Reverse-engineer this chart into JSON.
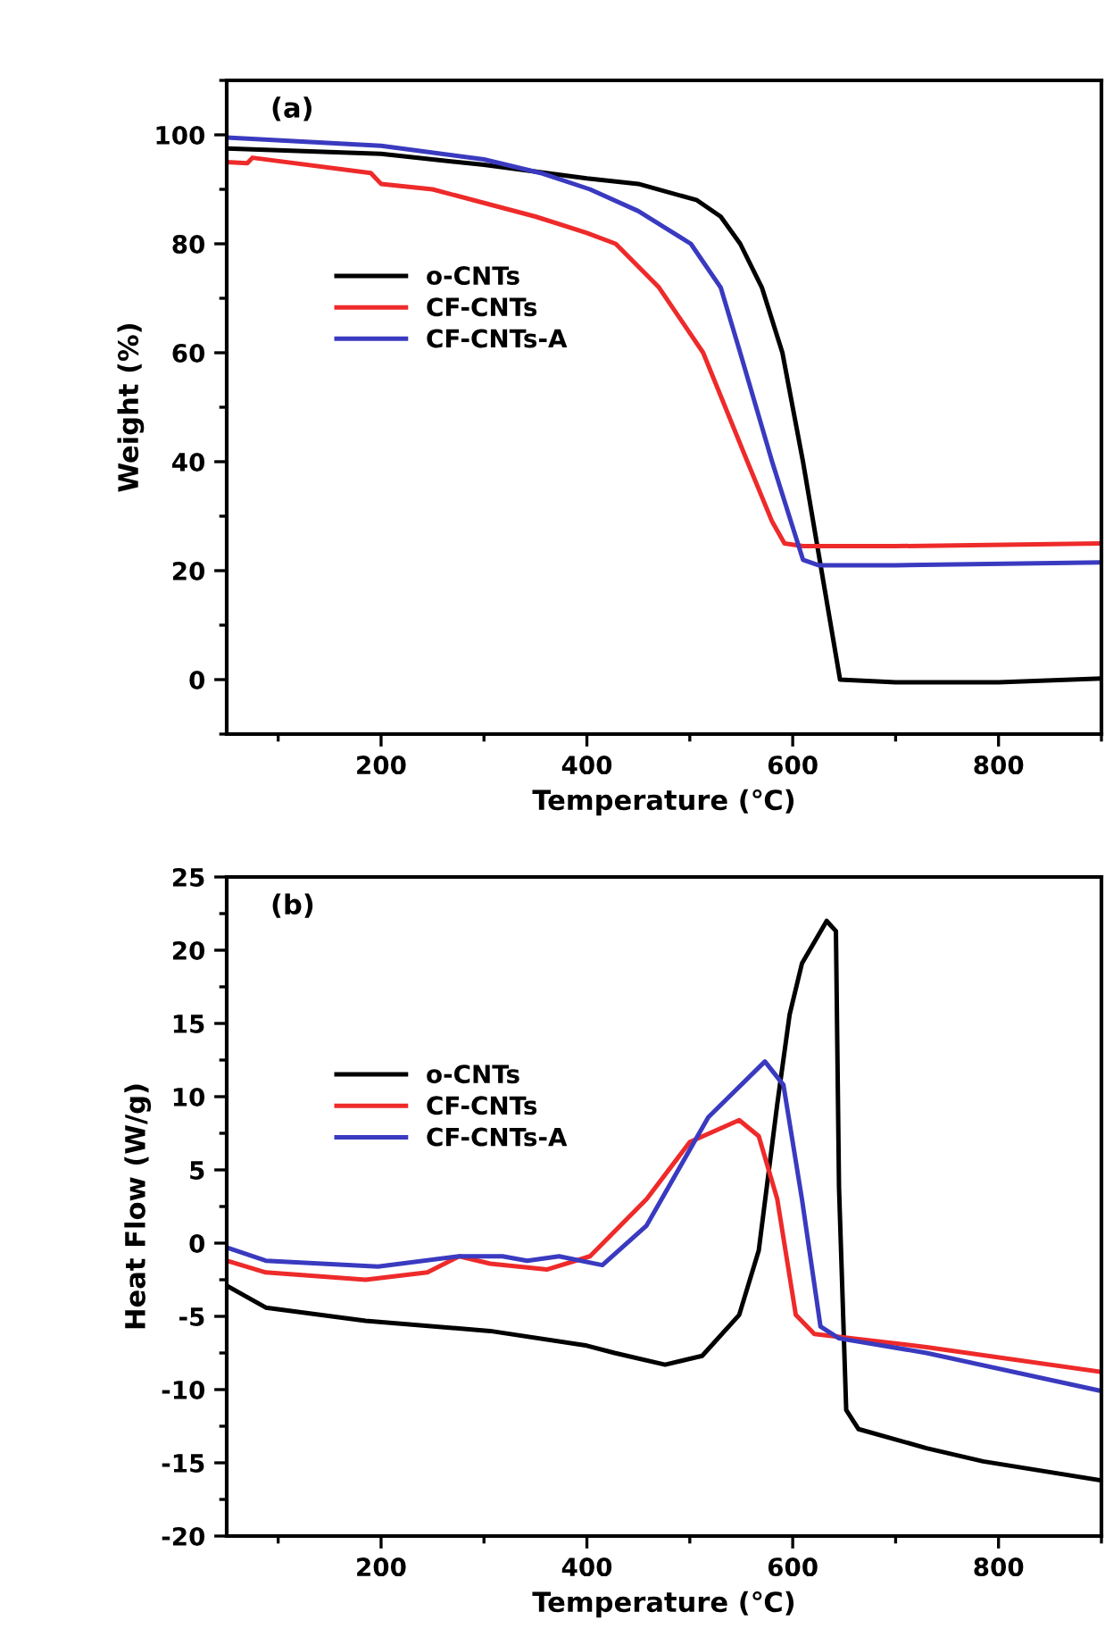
{
  "chart_data": [
    {
      "type": "line",
      "xlabel": "Temperature (℃)",
      "ylabel": "Weight (%)",
      "annotations": [
        "(a)"
      ],
      "xlim": [
        50,
        900
      ],
      "ylim": [
        -10,
        110
      ],
      "xticks": [
        200,
        400,
        600,
        800
      ],
      "yticks": [
        0,
        20,
        40,
        60,
        80,
        100
      ],
      "legend": "left",
      "grid": false,
      "series": [
        {
          "name": "o-CNTs",
          "color": "#000000",
          "x": [
            50,
            200,
            300,
            400,
            450,
            507,
            530,
            549,
            570,
            590,
            610,
            628,
            646,
            700,
            800,
            900
          ],
          "values": [
            97.5,
            96.5,
            94.5,
            92,
            91,
            88,
            85,
            80,
            72,
            60,
            40,
            20,
            0,
            -0.5,
            -0.5,
            0.2
          ]
        },
        {
          "name": "CF-CNTs",
          "color": "#ee2a2a",
          "x": [
            50,
            70,
            75,
            190,
            200,
            250,
            300,
            350,
            400,
            428,
            470,
            513,
            556,
            580,
            592,
            610,
            700,
            900
          ],
          "values": [
            95,
            94.8,
            95.8,
            93,
            91,
            90,
            87.5,
            85,
            82,
            80,
            72,
            60,
            40,
            29,
            25,
            24.5,
            24.5,
            25
          ]
        },
        {
          "name": "CF-CNTs-A",
          "color": "#3a3ac0",
          "x": [
            50,
            200,
            300,
            355,
            403,
            450,
            501,
            530,
            549,
            580,
            600,
            610,
            625,
            700,
            900
          ],
          "values": [
            99.5,
            98,
            95.5,
            93,
            90,
            86,
            80,
            72,
            60,
            40,
            28,
            22,
            21,
            21,
            21.5
          ]
        }
      ]
    },
    {
      "type": "line",
      "xlabel": "Temperature (℃)",
      "ylabel": "Heat Flow (W/g)",
      "annotations": [
        "(b)"
      ],
      "xlim": [
        50,
        900
      ],
      "ylim": [
        -20,
        25
      ],
      "xticks": [
        200,
        400,
        600,
        800
      ],
      "yticks": [
        -20,
        -15,
        -10,
        -5,
        0,
        5,
        10,
        15,
        20,
        25
      ],
      "legend": "left",
      "grid": false,
      "series": [
        {
          "name": "o-CNTs",
          "color": "#000000",
          "x": [
            50,
            88,
            185,
            306,
            400,
            427,
            476,
            512,
            548,
            567,
            585,
            597,
            609,
            633,
            642,
            645,
            652,
            664,
            730,
            785,
            900
          ],
          "values": [
            -2.9,
            -4.4,
            -5.3,
            -6,
            -7,
            -7.5,
            -8.3,
            -7.7,
            -4.9,
            -0.5,
            9.5,
            15.6,
            19.1,
            22,
            21.3,
            3.8,
            -11.4,
            -12.7,
            -14,
            -14.9,
            -16.2
          ]
        },
        {
          "name": "CF-CNTs",
          "color": "#ee2a2a",
          "x": [
            50,
            88,
            185,
            245,
            276,
            306,
            361,
            403,
            458,
            500,
            548,
            567,
            585,
            603,
            621,
            730,
            900
          ],
          "values": [
            -1.2,
            -2,
            -2.5,
            -2,
            -0.9,
            -1.4,
            -1.8,
            -0.9,
            3,
            6.9,
            8.4,
            7.3,
            3,
            -4.9,
            -6.2,
            -7.1,
            -8.8
          ]
        },
        {
          "name": "CF-CNTs-A",
          "color": "#3a3ac0",
          "x": [
            50,
            88,
            197,
            276,
            318,
            342,
            373,
            415,
            458,
            518,
            573,
            591,
            609,
            627,
            645,
            730,
            900
          ],
          "values": [
            -0.3,
            -1.2,
            -1.6,
            -0.9,
            -0.9,
            -1.2,
            -0.9,
            -1.5,
            1.2,
            8.6,
            12.4,
            10.8,
            3,
            -5.7,
            -6.5,
            -7.5,
            -10.1
          ]
        }
      ]
    }
  ]
}
